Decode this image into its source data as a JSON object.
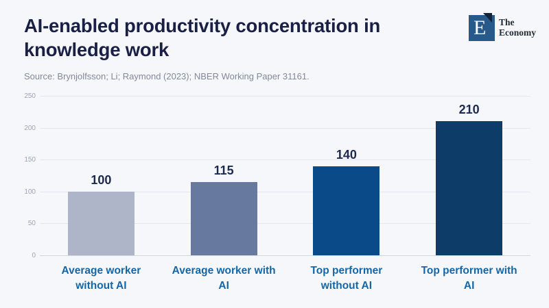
{
  "page": {
    "background": "#f6f7fb"
  },
  "header": {
    "title": "AI-enabled productivity concentration in\nknowledge work",
    "source": "Source: Brynjolfsson; Li; Raymond (2023); NBER Working Paper 31161.",
    "logo": {
      "letter": "E",
      "text": "The\nEconomy",
      "square_color": "#27598a",
      "flag_color": "#15223c"
    }
  },
  "chart_data": {
    "type": "bar",
    "title": "AI-enabled productivity concentration in knowledge work",
    "categories": [
      "Average worker\nwithout AI",
      "Average worker with\nAI",
      "Top performer\nwithout AI",
      "Top performer with\nAI"
    ],
    "values": [
      100,
      115,
      140,
      210
    ],
    "value_labels": [
      "100",
      "115",
      "140",
      "210"
    ],
    "bar_colors": [
      "#aeb5c8",
      "#67799f",
      "#0b4a88",
      "#0d3c69"
    ],
    "xlabel": "",
    "ylabel": "",
    "ylim": [
      0,
      250
    ],
    "yticks": [
      0,
      50,
      100,
      150,
      200,
      250
    ],
    "grid": true,
    "legend": "none",
    "colors": {
      "value_label": "#1c2a4f",
      "category_label": "#1566a7",
      "tick_label": "#9ba3b7",
      "gridline": "#e3e6ef"
    }
  }
}
